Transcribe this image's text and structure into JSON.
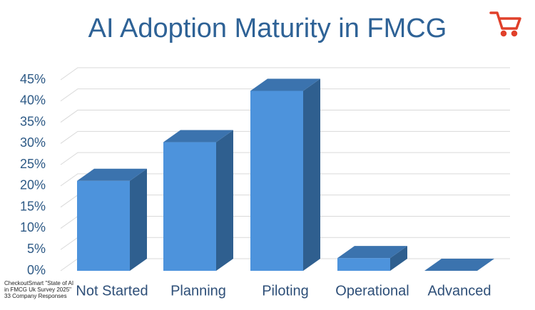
{
  "chart_data": {
    "type": "bar3d",
    "title": "AI Adoption Maturity in FMCG",
    "categories": [
      "Not Started",
      "Planning",
      "Piloting",
      "Operational",
      "Advanced"
    ],
    "values": [
      21.2,
      30.3,
      42.4,
      3.0,
      0
    ],
    "color": "#4d93dc",
    "ylim": [
      0,
      45
    ],
    "yticks": [
      {
        "value": 0,
        "label": "0%"
      },
      {
        "value": 5,
        "label": "5%"
      },
      {
        "value": 10,
        "label": "10%"
      },
      {
        "value": 15,
        "label": "15%"
      },
      {
        "value": 20,
        "label": "20%"
      },
      {
        "value": 25,
        "label": "25%"
      },
      {
        "value": 30,
        "label": "30%"
      },
      {
        "value": 35,
        "label": "35%"
      },
      {
        "value": 40,
        "label": "40%"
      },
      {
        "value": 45,
        "label": "45%"
      }
    ],
    "grid": true,
    "source": [
      "CheckoutSmart \"State of AI",
      "in FMCG Uk Survey 2025\"",
      "33 Company Responses"
    ]
  }
}
